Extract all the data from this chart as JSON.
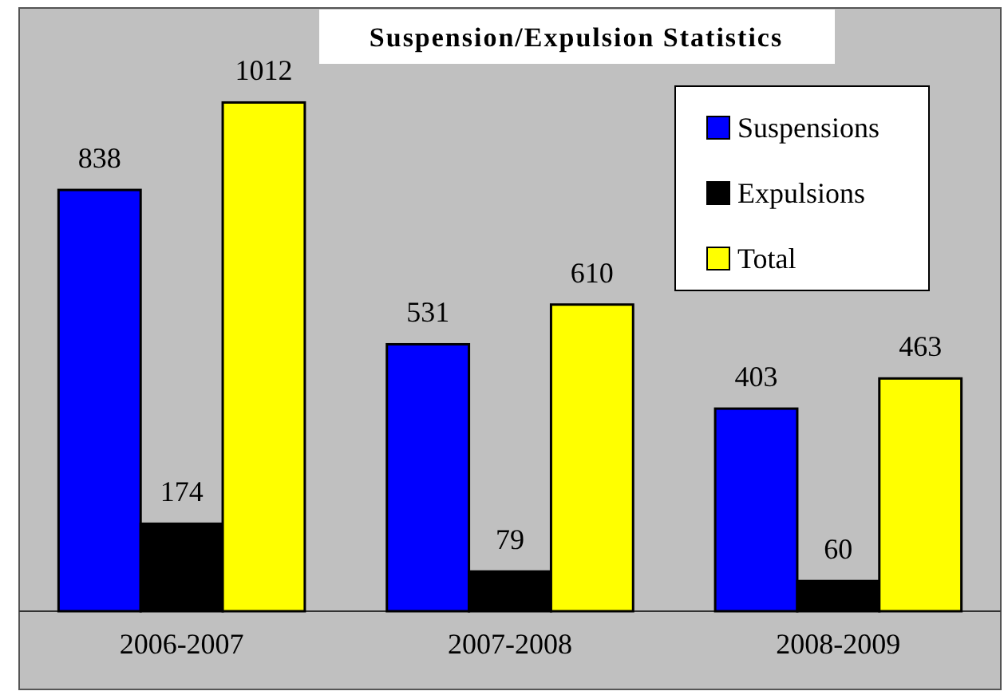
{
  "chart_data": {
    "type": "bar",
    "title": "Suspension/Expulsion Statistics",
    "categories": [
      "2006-2007",
      "2007-2008",
      "2008-2009"
    ],
    "series": [
      {
        "name": "Suspensions",
        "color": "#0000ff",
        "values": [
          838,
          531,
          403
        ]
      },
      {
        "name": "Expulsions",
        "color": "#000000",
        "values": [
          174,
          79,
          60
        ]
      },
      {
        "name": "Total",
        "color": "#ffff00",
        "values": [
          1012,
          610,
          463
        ]
      }
    ],
    "ylim": [
      0,
      1200
    ],
    "tick_labels": "x",
    "data_labels": true,
    "legend": "top right"
  }
}
